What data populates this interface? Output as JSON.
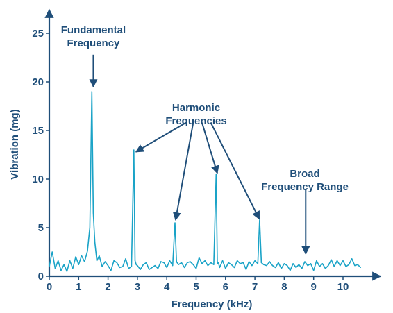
{
  "chart_data": {
    "type": "line",
    "xlabel": "Frequency (kHz)",
    "ylabel": "Vibration (mg)",
    "xlim": [
      0,
      11.3
    ],
    "ylim": [
      0,
      27.5
    ],
    "x_ticks": [
      0,
      1,
      2,
      3,
      4,
      5,
      6,
      7,
      8,
      9,
      10
    ],
    "y_ticks": [
      0,
      5,
      10,
      15,
      20,
      25
    ],
    "grid": false,
    "line_color": "#1aa3c7",
    "axis_color": "#1f4e79",
    "text_color": "#1f4e79",
    "series": [
      {
        "x": [
          0.0,
          0.1,
          0.2,
          0.3,
          0.4,
          0.5,
          0.6,
          0.7,
          0.8,
          0.9,
          1.0,
          1.1,
          1.2,
          1.3,
          1.38,
          1.45,
          1.5,
          1.55,
          1.62,
          1.7,
          1.8,
          1.9,
          2.0,
          2.1,
          2.2,
          2.3,
          2.4,
          2.5,
          2.6,
          2.7,
          2.8,
          2.88,
          2.92,
          2.96,
          3.0,
          3.1,
          3.2,
          3.3,
          3.4,
          3.5,
          3.6,
          3.7,
          3.8,
          3.9,
          4.0,
          4.1,
          4.2,
          4.28,
          4.33,
          4.4,
          4.5,
          4.6,
          4.7,
          4.8,
          4.9,
          5.0,
          5.1,
          5.2,
          5.3,
          5.4,
          5.5,
          5.6,
          5.68,
          5.72,
          5.76,
          5.8,
          5.9,
          6.0,
          6.1,
          6.2,
          6.3,
          6.4,
          6.5,
          6.6,
          6.7,
          6.8,
          6.9,
          7.0,
          7.1,
          7.16,
          7.22,
          7.3,
          7.4,
          7.5,
          7.6,
          7.7,
          7.8,
          7.9,
          8.0,
          8.1,
          8.2,
          8.3,
          8.4,
          8.5,
          8.6,
          8.7,
          8.8,
          8.9,
          9.0,
          9.1,
          9.2,
          9.3,
          9.4,
          9.5,
          9.6,
          9.7,
          9.8,
          9.9,
          10.0,
          10.1,
          10.2,
          10.3,
          10.4,
          10.5,
          10.6
        ],
        "y": [
          1.0,
          2.5,
          0.8,
          1.6,
          0.6,
          1.2,
          0.5,
          1.6,
          0.8,
          2.0,
          1.2,
          2.1,
          1.5,
          2.6,
          5.0,
          19.0,
          6.5,
          3.5,
          1.6,
          2.1,
          1.0,
          1.5,
          1.1,
          0.6,
          1.6,
          1.4,
          0.9,
          1.0,
          1.8,
          0.8,
          1.0,
          13.0,
          1.6,
          1.2,
          1.1,
          0.7,
          1.2,
          1.4,
          0.7,
          0.9,
          1.1,
          0.8,
          1.5,
          1.4,
          0.9,
          1.6,
          1.1,
          5.5,
          1.5,
          1.2,
          1.4,
          0.9,
          1.4,
          1.5,
          1.2,
          0.8,
          1.9,
          1.3,
          1.6,
          1.1,
          1.4,
          1.2,
          10.5,
          1.3,
          1.4,
          0.9,
          1.6,
          0.8,
          1.4,
          1.2,
          0.9,
          1.6,
          1.3,
          1.4,
          0.7,
          1.5,
          1.1,
          1.6,
          1.3,
          5.8,
          1.4,
          1.2,
          1.1,
          1.5,
          1.1,
          0.9,
          1.4,
          0.8,
          1.3,
          1.1,
          0.6,
          1.3,
          0.9,
          1.2,
          0.8,
          1.5,
          1.1,
          1.3,
          0.6,
          1.6,
          1.0,
          1.3,
          0.8,
          1.1,
          1.7,
          1.0,
          1.6,
          1.1,
          1.6,
          1.0,
          1.2,
          1.8,
          1.1,
          1.2,
          0.9
        ]
      }
    ],
    "annotations": [
      {
        "id": "fundamental",
        "lines": [
          "Fundamental",
          "Frequency"
        ],
        "label_at": [
          1.5,
          25.0
        ],
        "arrows": [
          {
            "from": [
              1.5,
              22.8
            ],
            "to": [
              1.5,
              19.5
            ]
          }
        ]
      },
      {
        "id": "harmonic",
        "lines": [
          "Harmonic",
          "Frequencies"
        ],
        "label_at": [
          5.0,
          17.0
        ],
        "arrows": [
          {
            "from": [
              4.65,
              15.8
            ],
            "to": [
              2.95,
              12.8
            ]
          },
          {
            "from": [
              4.9,
              15.8
            ],
            "to": [
              4.3,
              5.8
            ]
          },
          {
            "from": [
              5.2,
              15.8
            ],
            "to": [
              5.72,
              10.6
            ]
          },
          {
            "from": [
              5.5,
              15.8
            ],
            "to": [
              7.15,
              5.9
            ]
          }
        ]
      },
      {
        "id": "broad-range",
        "lines": [
          "Broad",
          "Frequency Range"
        ],
        "label_at": [
          8.7,
          10.2
        ],
        "arrows": [
          {
            "from": [
              8.73,
              9.0
            ],
            "to": [
              8.73,
              2.3
            ]
          }
        ]
      }
    ]
  }
}
